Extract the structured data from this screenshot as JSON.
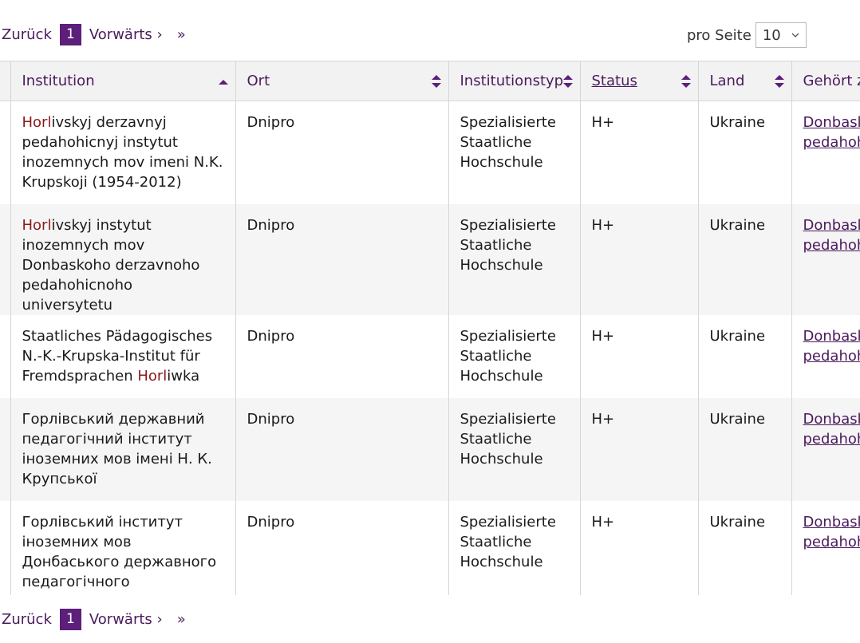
{
  "pagination": {
    "prev_label": "Zurück",
    "current_page": "1",
    "next_label": "Vorwärts ›",
    "last_label": "»"
  },
  "per_page": {
    "label": "pro Seite",
    "value": "10"
  },
  "table": {
    "headers": {
      "institution": "Institution",
      "ort": "Ort",
      "typ": "Institutionstyp",
      "status": "Status",
      "land": "Land",
      "belongs": "Gehört z"
    },
    "rows": [
      {
        "name_hl": "Horl",
        "name_rest": "ivskyj derzavnyj pedahohicnyj instytut inozemnych mov imeni N.K. Krupskoji (1954-2012)",
        "ort": "Dnipro",
        "typ_1": "Spezialisierte",
        "typ_2": "Staatliche",
        "typ_3": "Hochschule",
        "status": "H+",
        "land": "Ukraine",
        "belongs_1": "Donbask",
        "belongs_2": "pedahoh"
      },
      {
        "name_hl": "Horl",
        "name_rest": "ivskyj instytut inozemnych mov Donbaskoho derzavnoho pedahohicnoho universytetu",
        "ort": "Dnipro",
        "typ_1": "Spezialisierte",
        "typ_2": "Staatliche",
        "typ_3": "Hochschule",
        "status": "H+",
        "land": "Ukraine",
        "belongs_1": "Donbask",
        "belongs_2": "pedahoh"
      },
      {
        "name_pre": "Staatliches Pädagogisches N.-K.-Krupska-Institut für Fremdsprachen ",
        "name_hl": "Horl",
        "name_rest": "iwka",
        "ort": "Dnipro",
        "typ_1": "Spezialisierte",
        "typ_2": "Staatliche",
        "typ_3": "Hochschule",
        "status": "H+",
        "land": "Ukraine",
        "belongs_1": "Donbask",
        "belongs_2": "pedahoh"
      },
      {
        "name": "Горлівський державний педагогічний інститут іноземних мов імені Н. К. Крупської",
        "ort": "Dnipro",
        "typ_1": "Spezialisierte",
        "typ_2": "Staatliche",
        "typ_3": "Hochschule",
        "status": "H+",
        "land": "Ukraine",
        "belongs_1": "Donbask",
        "belongs_2": "pedahoh"
      },
      {
        "name": "Горлівський інститут іноземних мов Донбаського державного педагогічного університету",
        "ort": "Dnipro",
        "typ_1": "Spezialisierte",
        "typ_2": "Staatliche",
        "typ_3": "Hochschule",
        "status": "H+",
        "land": "Ukraine",
        "belongs_1": "Donbask",
        "belongs_2": "pedahoh"
      }
    ]
  },
  "colors": {
    "accent": "#5c1f7a",
    "link": "#4a1a5c",
    "highlight": "#8b1a1a",
    "row_alt": "#f5f5f5",
    "header_bg": "#f2f2f2"
  }
}
